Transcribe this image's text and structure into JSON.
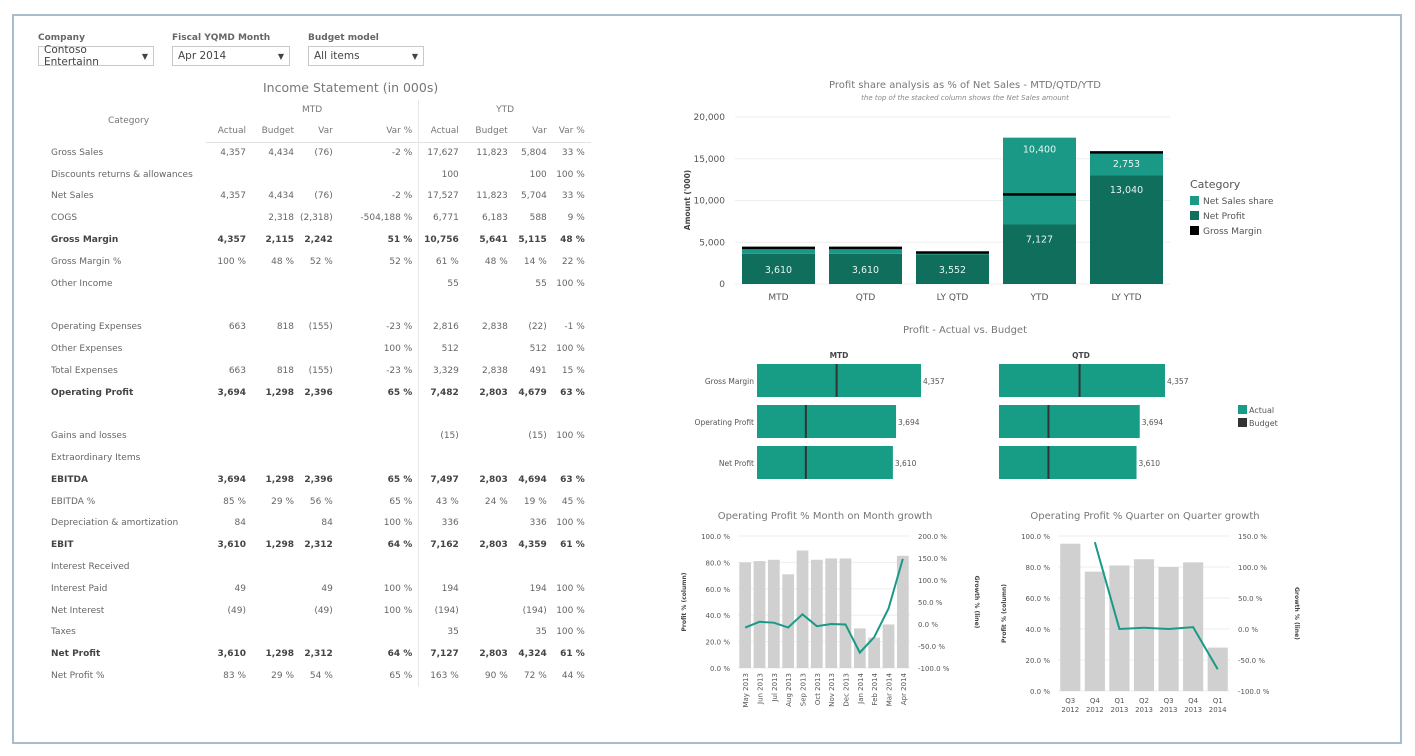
{
  "filters": [
    {
      "label": "Company",
      "value": "Contoso Entertainn"
    },
    {
      "label": "Fiscal YQMD Month",
      "value": "Apr 2014"
    },
    {
      "label": "Budget model",
      "value": "All items"
    }
  ],
  "income_statement": {
    "title": "Income Statement (in 000s)",
    "category_header": "Category",
    "groups": [
      "MTD",
      "YTD"
    ],
    "columns": [
      "Actual",
      "Budget",
      "Var",
      "Var %"
    ],
    "rows": [
      {
        "label": "Gross Sales",
        "bold": false,
        "mtd": [
          "4,357",
          "4,434",
          "(76)",
          "-2 %"
        ],
        "ytd": [
          "17,627",
          "11,823",
          "5,804",
          "33 %"
        ]
      },
      {
        "label": "Discounts returns & allowances",
        "bold": false,
        "mtd": [
          "",
          "",
          "",
          ""
        ],
        "ytd": [
          "100",
          "",
          "100",
          "100 %"
        ]
      },
      {
        "label": "Net Sales",
        "bold": false,
        "mtd": [
          "4,357",
          "4,434",
          "(76)",
          "-2 %"
        ],
        "ytd": [
          "17,527",
          "11,823",
          "5,704",
          "33 %"
        ]
      },
      {
        "label": "COGS",
        "bold": false,
        "mtd": [
          "",
          "2,318",
          "(2,318)",
          "-504,188 %"
        ],
        "ytd": [
          "6,771",
          "6,183",
          "588",
          "9 %"
        ]
      },
      {
        "label": "Gross Margin",
        "bold": true,
        "mtd": [
          "4,357",
          "2,115",
          "2,242",
          "51 %"
        ],
        "ytd": [
          "10,756",
          "5,641",
          "5,115",
          "48 %"
        ]
      },
      {
        "label": "Gross Margin %",
        "bold": false,
        "mtd": [
          "100 %",
          "48 %",
          "52 %",
          "52 %"
        ],
        "ytd": [
          "61 %",
          "48 %",
          "14 %",
          "22 %"
        ]
      },
      {
        "label": "Other Income",
        "bold": false,
        "mtd": [
          "",
          "",
          "",
          ""
        ],
        "ytd": [
          "55",
          "",
          "55",
          "100 %"
        ]
      },
      {
        "label": "",
        "bold": false,
        "mtd": [
          "",
          "",
          "",
          ""
        ],
        "ytd": [
          "",
          "",
          "",
          ""
        ]
      },
      {
        "label": "Operating Expenses",
        "bold": false,
        "mtd": [
          "663",
          "818",
          "(155)",
          "-23 %"
        ],
        "ytd": [
          "2,816",
          "2,838",
          "(22)",
          "-1 %"
        ]
      },
      {
        "label": "Other Expenses",
        "bold": false,
        "mtd": [
          "",
          "",
          "",
          "100 %"
        ],
        "ytd": [
          "512",
          "",
          "512",
          "100 %"
        ]
      },
      {
        "label": "Total Expenses",
        "bold": false,
        "mtd": [
          "663",
          "818",
          "(155)",
          "-23 %"
        ],
        "ytd": [
          "3,329",
          "2,838",
          "491",
          "15 %"
        ]
      },
      {
        "label": "Operating Profit",
        "bold": true,
        "mtd": [
          "3,694",
          "1,298",
          "2,396",
          "65 %"
        ],
        "ytd": [
          "7,482",
          "2,803",
          "4,679",
          "63 %"
        ]
      },
      {
        "label": "",
        "bold": false,
        "mtd": [
          "",
          "",
          "",
          ""
        ],
        "ytd": [
          "",
          "",
          "",
          ""
        ]
      },
      {
        "label": "Gains and losses",
        "bold": false,
        "mtd": [
          "",
          "",
          "",
          ""
        ],
        "ytd": [
          "(15)",
          "",
          "(15)",
          "100 %"
        ]
      },
      {
        "label": "Extraordinary Items",
        "bold": false,
        "mtd": [
          "",
          "",
          "",
          ""
        ],
        "ytd": [
          "",
          "",
          "",
          ""
        ]
      },
      {
        "label": "EBITDA",
        "bold": true,
        "mtd": [
          "3,694",
          "1,298",
          "2,396",
          "65 %"
        ],
        "ytd": [
          "7,497",
          "2,803",
          "4,694",
          "63 %"
        ]
      },
      {
        "label": "EBITDA %",
        "bold": false,
        "mtd": [
          "85 %",
          "29 %",
          "56 %",
          "65 %"
        ],
        "ytd": [
          "43 %",
          "24 %",
          "19 %",
          "45 %"
        ]
      },
      {
        "label": "Depreciation & amortization",
        "bold": false,
        "mtd": [
          "84",
          "",
          "84",
          "100 %"
        ],
        "ytd": [
          "336",
          "",
          "336",
          "100 %"
        ]
      },
      {
        "label": "EBIT",
        "bold": true,
        "mtd": [
          "3,610",
          "1,298",
          "2,312",
          "64 %"
        ],
        "ytd": [
          "7,162",
          "2,803",
          "4,359",
          "61 %"
        ]
      },
      {
        "label": "Interest Received",
        "bold": false,
        "mtd": [
          "",
          "",
          "",
          ""
        ],
        "ytd": [
          "",
          "",
          "",
          ""
        ]
      },
      {
        "label": "Interest Paid",
        "bold": false,
        "mtd": [
          "49",
          "",
          "49",
          "100 %"
        ],
        "ytd": [
          "194",
          "",
          "194",
          "100 %"
        ]
      },
      {
        "label": "Net Interest",
        "bold": false,
        "mtd": [
          "(49)",
          "",
          "(49)",
          "100 %"
        ],
        "ytd": [
          "(194)",
          "",
          "(194)",
          "100 %"
        ]
      },
      {
        "label": "Taxes",
        "bold": false,
        "mtd": [
          "",
          "",
          "",
          ""
        ],
        "ytd": [
          "35",
          "",
          "35",
          "100 %"
        ]
      },
      {
        "label": "Net Profit",
        "bold": true,
        "mtd": [
          "3,610",
          "1,298",
          "2,312",
          "64 %"
        ],
        "ytd": [
          "7,127",
          "2,803",
          "4,324",
          "61 %"
        ]
      },
      {
        "label": "Net Profit %",
        "bold": false,
        "mtd": [
          "83 %",
          "29 %",
          "54 %",
          "65 %"
        ],
        "ytd": [
          "163 %",
          "90 %",
          "72 %",
          "44 %"
        ]
      }
    ]
  },
  "colors": {
    "net_sales_share": "#1a9a86",
    "net_profit": "#0f6e5c",
    "gross_margin": "#000000",
    "actual": "#179c86",
    "budget": "#333333",
    "column_gray": "#d0d0d0",
    "growth_line": "#1a9a86"
  },
  "chart_data": [
    {
      "id": "profit-share",
      "type": "bar",
      "stacked": true,
      "title": "Profit share analysis as % of Net Sales - MTD/QTD/YTD",
      "subtitle": "the top of the stacked column shows the Net Sales amount",
      "ylabel": "Amount ('000)",
      "ylim": [
        0,
        20000
      ],
      "yticks": [
        "0",
        "5,000",
        "10,000",
        "15,000",
        "20,000"
      ],
      "ytick_values": [
        0,
        5000,
        10000,
        15000,
        20000
      ],
      "categories": [
        "MTD",
        "QTD",
        "LY QTD",
        "YTD",
        "LY YTD"
      ],
      "legend_title": "Category",
      "legend_position": "right",
      "series": [
        {
          "name": "Net Sales share",
          "values": [
            747,
            747,
            250,
            10400,
            2753
          ]
        },
        {
          "name": "Net Profit",
          "values": [
            3610,
            3610,
            3552,
            7127,
            13040
          ]
        },
        {
          "name": "Gross Margin",
          "values": [
            4357,
            4357,
            3802,
            10756,
            15793
          ]
        }
      ],
      "labels": {
        "Net Profit": [
          "3,610",
          "3,610",
          "3,552",
          "7,127",
          "13,040"
        ],
        "Net Sales share": [
          "",
          "",
          "",
          "10,400",
          "2,753"
        ]
      }
    },
    {
      "id": "actual-vs-budget",
      "type": "bar",
      "orientation": "horizontal",
      "title": "Profit - Actual vs. Budget",
      "panels": [
        "MTD",
        "QTD"
      ],
      "categories": [
        "Gross Margin",
        "Operating Profit",
        "Net Profit"
      ],
      "legend_position": "right",
      "series": [
        {
          "name": "Actual",
          "MTD": [
            4357,
            3694,
            3610
          ],
          "QTD": [
            4357,
            3694,
            3610
          ]
        },
        {
          "name": "Budget",
          "MTD": [
            2115,
            1298,
            1298
          ],
          "QTD": [
            2115,
            1298,
            1298
          ]
        }
      ],
      "value_labels": [
        "4,357",
        "3,694",
        "3,610"
      ]
    },
    {
      "id": "mom-growth",
      "type": "bar+line",
      "title": "Operating Profit % Month on Month growth",
      "ylabel": "Profit % (column)",
      "y2label": "Growth % (line)",
      "ylim": [
        0,
        100
      ],
      "y2lim": [
        -100,
        200
      ],
      "yticks": [
        "0.0 %",
        "20.0 %",
        "40.0 %",
        "60.0 %",
        "80.0 %",
        "100.0 %"
      ],
      "y2ticks": [
        "-100.0 %",
        "-50.0 %",
        "0.0 %",
        "50.0 %",
        "100.0 %",
        "150.0 %",
        "200.0 %"
      ],
      "categories": [
        "May 2013",
        "Jun 2013",
        "Jul 2013",
        "Aug 2013",
        "Sep 2013",
        "Oct 2013",
        "Nov 2013",
        "Dec 2013",
        "Jan 2014",
        "Feb 2014",
        "Mar 2014",
        "Apr 2014"
      ],
      "series": [
        {
          "name": "Profit %",
          "type": "bar",
          "values": [
            80,
            81,
            82,
            71,
            89,
            82,
            83,
            83,
            30,
            23,
            33,
            85
          ]
        },
        {
          "name": "Growth %",
          "type": "line",
          "values": [
            -8,
            5,
            3,
            -8,
            22,
            -5,
            0,
            -1,
            -65,
            -30,
            35,
            148
          ]
        }
      ]
    },
    {
      "id": "qoq-growth",
      "type": "bar+line",
      "title": "Operating Profit % Quarter on Quarter growth",
      "ylabel": "Profit % (column)",
      "y2label": "Growth % (line)",
      "ylim": [
        0,
        100
      ],
      "y2lim": [
        -100,
        150
      ],
      "yticks": [
        "0.0 %",
        "20.0 %",
        "40.0 %",
        "60.0 %",
        "80.0 %",
        "100.0 %"
      ],
      "y2ticks": [
        "-100.0 %",
        "-50.0 %",
        "0.0 %",
        "50.0 %",
        "100.0 %",
        "150.0 %"
      ],
      "categories": [
        "Q3 2012",
        "Q4 2012",
        "Q1 2013",
        "Q2 2013",
        "Q3 2013",
        "Q4 2013",
        "Q1 2014"
      ],
      "series": [
        {
          "name": "Profit %",
          "type": "bar",
          "values": [
            95,
            77,
            81,
            85,
            80,
            83,
            28
          ]
        },
        {
          "name": "Growth %",
          "type": "line",
          "values": [
            null,
            140,
            0,
            2,
            0,
            3,
            -65
          ]
        }
      ]
    }
  ]
}
